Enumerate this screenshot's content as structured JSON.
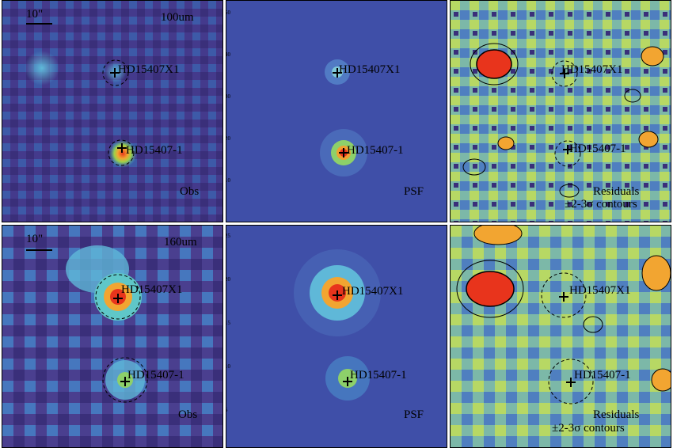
{
  "figure": {
    "rows": [
      {
        "band": "100um",
        "scale_bar": "10\"",
        "panels": {
          "obs": "Obs",
          "psf": "PSF",
          "res_line1": "Residuals",
          "res_line2": "±2-3σ contours"
        },
        "sources": {
          "companion": "HD15407X1",
          "primary": "HD15407-1"
        },
        "axis_ticks": [
          "50",
          "40",
          "30",
          "20",
          "10"
        ]
      },
      {
        "band": "160um",
        "scale_bar": "10\"",
        "panels": {
          "obs": "Obs",
          "psf": "PSF",
          "res_line1": "Residuals",
          "res_line2": "±2-3σ contours"
        },
        "sources": {
          "companion": "HD15407X1",
          "primary": "HD15407-1"
        },
        "axis_ticks": [
          "25",
          "20",
          "15",
          "10",
          "5"
        ]
      }
    ],
    "colors": {
      "obs_bg": "#4a3f8f",
      "psf_bg": "#3f4fa8",
      "res_bg": "#6aa8b8",
      "peak": "#e8341c"
    }
  }
}
